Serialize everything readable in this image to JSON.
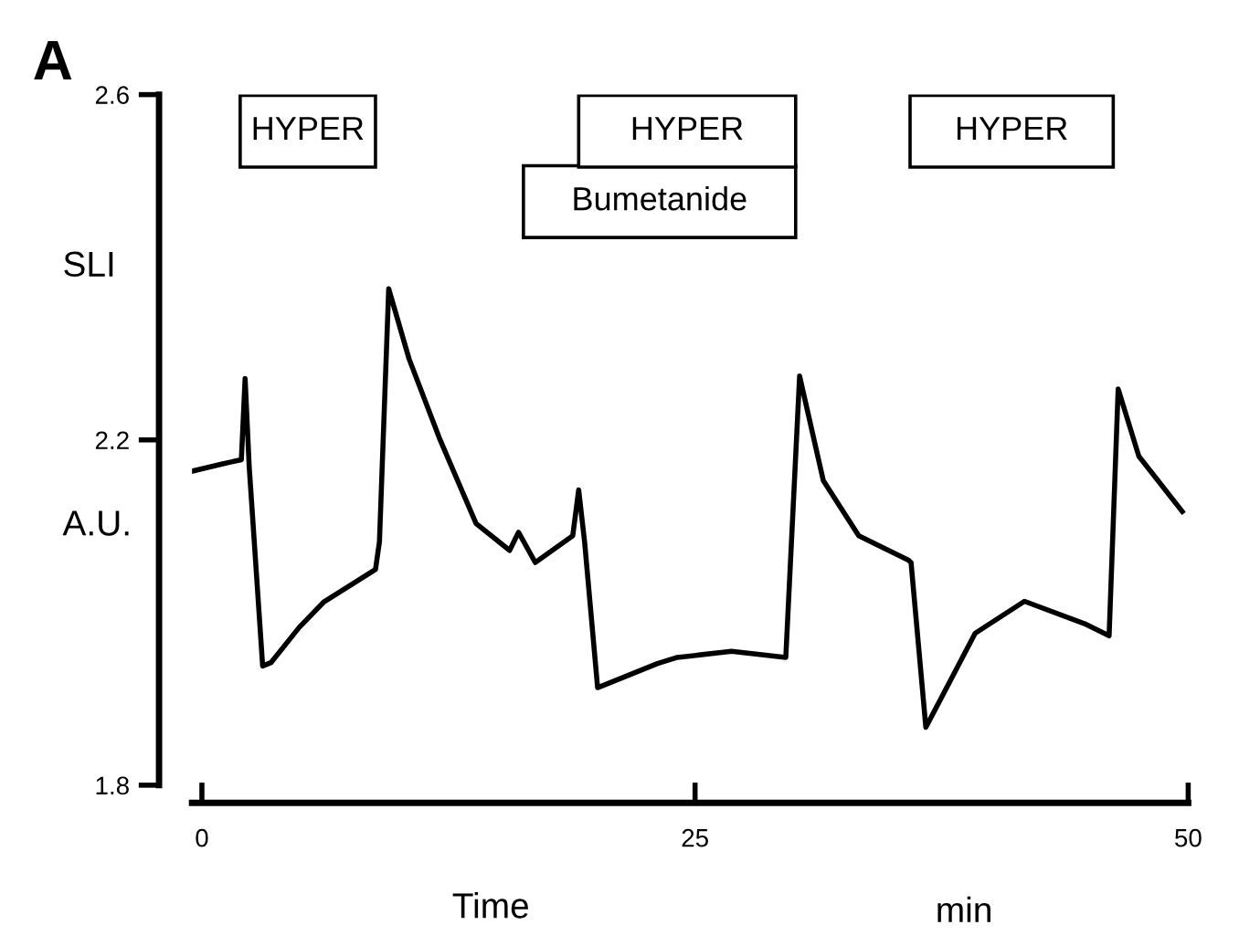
{
  "chart_data": {
    "type": "line",
    "title": "A",
    "xlabel": "Time",
    "ylabel": "SLI",
    "annotations": [
      "min",
      "A.U."
    ],
    "x": [
      -0.46,
      1.0,
      2.0,
      2.19,
      2.4,
      3.08,
      3.5,
      4.94,
      6.17,
      8.8,
      9.0,
      9.47,
      10.5,
      12.04,
      13.9,
      15.6,
      16.05,
      16.9,
      18.8,
      19.1,
      19.4,
      20.06,
      23.1,
      24.1,
      26.85,
      29.6,
      30.3,
      31.5,
      33.3,
      35.8,
      35.95,
      36.7,
      39.2,
      41.7,
      44.75,
      45.99,
      46.45,
      47.5,
      49.7
    ],
    "series": [
      {
        "color": "#000000",
        "values": [
          2.164,
          2.172,
          2.177,
          2.271,
          2.168,
          1.938,
          1.942,
          1.983,
          2.012,
          2.05,
          2.082,
          2.375,
          2.294,
          2.202,
          2.103,
          2.072,
          2.093,
          2.058,
          2.089,
          2.142,
          2.082,
          1.913,
          1.941,
          1.948,
          1.955,
          1.948,
          2.274,
          2.153,
          2.089,
          2.061,
          2.058,
          1.867,
          1.976,
          2.013,
          1.987,
          1.973,
          2.259,
          2.181,
          2.117
        ]
      }
    ],
    "xlim": [
      -0.5,
      50
    ],
    "xticks": [
      0,
      25,
      50
    ],
    "ylim": [
      1.8,
      2.6
    ],
    "yticks": [
      1.8,
      2.2,
      2.6
    ],
    "bands": [
      {
        "axis": "x",
        "from": 1.94,
        "to": 8.8,
        "label": "HYPER"
      },
      {
        "axis": "x",
        "from": 19.1,
        "to": 30.1,
        "label": "HYPER"
      },
      {
        "axis": "x",
        "from": 16.3,
        "to": 30.1,
        "label": "Bumetanide"
      },
      {
        "axis": "x",
        "from": 35.9,
        "to": 46.2,
        "label": "HYPER"
      }
    ],
    "grid": false,
    "marker": "none",
    "line_style": "solid"
  }
}
